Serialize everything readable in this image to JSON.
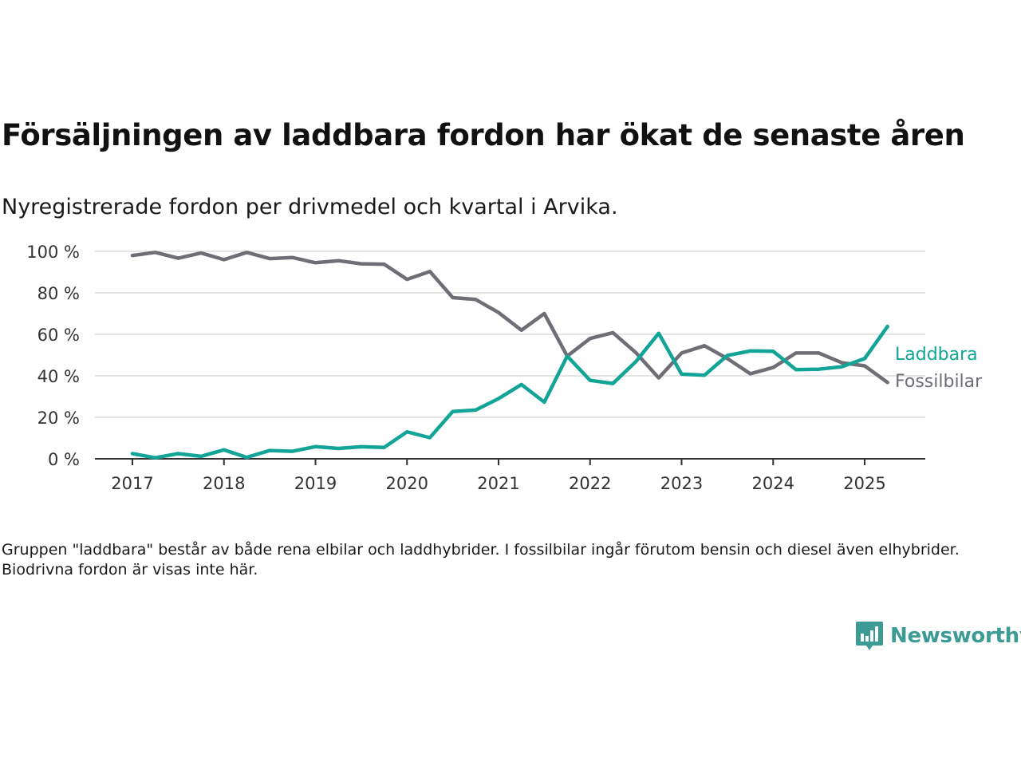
{
  "title": "Försäljningen av laddbara fordon har ökat de senaste åren",
  "subtitle": "Nyregistrerade fordon per drivmedel och kvartal i Arvika.",
  "note": "Gruppen \"laddbara\" består av både rena elbilar och laddhybrider. I fossilbilar ingår förutom bensin och diesel även elhybrider. Biodrivna fordon är visas inte här.",
  "brand": {
    "name": "Newsworthy",
    "icon": "newsworthy-logo-icon",
    "color": "#3d9b95"
  },
  "chart_data": {
    "type": "line",
    "x_ticks": [
      "2017",
      "2018",
      "2019",
      "2020",
      "2021",
      "2022",
      "2023",
      "2024",
      "2025"
    ],
    "y_ticks": [
      "0 %",
      "20 %",
      "40 %",
      "60 %",
      "80 %",
      "100 %"
    ],
    "ylim": [
      0,
      100
    ],
    "grid": true,
    "legend": "direct labels at right end of lines",
    "x": [
      "2017-Q1",
      "2017-Q2",
      "2017-Q3",
      "2017-Q4",
      "2018-Q1",
      "2018-Q2",
      "2018-Q3",
      "2018-Q4",
      "2019-Q1",
      "2019-Q2",
      "2019-Q3",
      "2019-Q4",
      "2020-Q1",
      "2020-Q2",
      "2020-Q3",
      "2020-Q4",
      "2021-Q1",
      "2021-Q2",
      "2021-Q3",
      "2021-Q4",
      "2022-Q1",
      "2022-Q2",
      "2022-Q3",
      "2022-Q4",
      "2023-Q1",
      "2023-Q2",
      "2023-Q3",
      "2023-Q4",
      "2024-Q1",
      "2024-Q2",
      "2024-Q3",
      "2024-Q4",
      "2025-Q1",
      "2025-Q2"
    ],
    "series": [
      {
        "name": "Laddbara",
        "color": "#12a597",
        "values": [
          2.5,
          0.5,
          2.5,
          1.2,
          4.3,
          0.7,
          4.0,
          3.6,
          5.9,
          5.0,
          5.8,
          5.5,
          13.0,
          10.2,
          22.8,
          23.5,
          29.0,
          35.8,
          27.3,
          49.5,
          37.8,
          36.3,
          46.8,
          60.5,
          40.8,
          40.3,
          49.8,
          52.0,
          51.8,
          43.0,
          43.2,
          44.4,
          48.3,
          63.8
        ]
      },
      {
        "name": "Fossilbilar",
        "color": "#6f6e76",
        "values": [
          98.0,
          99.5,
          96.7,
          99.2,
          96.0,
          99.5,
          96.5,
          97.0,
          94.5,
          95.5,
          94.0,
          93.8,
          86.5,
          90.3,
          77.7,
          76.8,
          70.5,
          62.0,
          70.0,
          49.5,
          58.0,
          60.8,
          51.2,
          39.0,
          51.0,
          54.5,
          48.3,
          41.0,
          44.0,
          51.0,
          51.0,
          46.3,
          44.8,
          36.8
        ]
      }
    ]
  }
}
